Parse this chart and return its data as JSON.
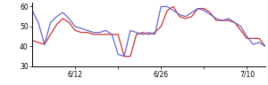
{
  "blue_y": [
    58,
    52,
    41,
    52,
    55,
    57,
    54,
    50,
    49,
    48,
    47,
    47,
    48,
    46,
    36,
    35,
    48,
    47,
    46,
    47,
    46,
    60,
    60,
    58,
    56,
    55,
    57,
    59,
    58,
    56,
    54,
    53,
    54,
    52,
    50,
    45,
    41,
    42,
    40
  ],
  "red_y": [
    43,
    42,
    41,
    46,
    51,
    54,
    52,
    48,
    47,
    47,
    46,
    46,
    46,
    46,
    46,
    35,
    35,
    46,
    47,
    46,
    47,
    50,
    58,
    60,
    55,
    54,
    55,
    59,
    59,
    57,
    53,
    53,
    53,
    52,
    48,
    44,
    44,
    44,
    40
  ],
  "xlim": [
    0,
    38
  ],
  "ylim": [
    30,
    62
  ],
  "yticks": [
    30,
    40,
    50,
    60
  ],
  "xtick_positions": [
    7,
    14,
    21,
    28,
    35
  ],
  "xtick_labels": [
    "6/12",
    "",
    "6/26",
    "",
    "7/10"
  ],
  "blue_color": "#6666cc",
  "red_color": "#cc3333",
  "bg_color": "#ffffff",
  "linewidth": 0.9
}
